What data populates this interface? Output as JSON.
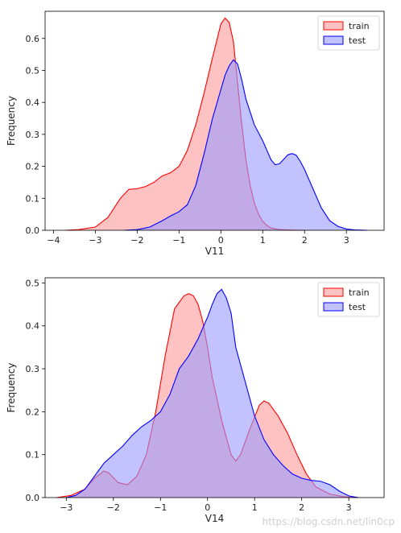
{
  "chart_data": [
    {
      "type": "area",
      "xlabel": "V11",
      "ylabel": "Frequency",
      "xlim": [
        -4.2,
        3.9
      ],
      "ylim": [
        0,
        0.685
      ],
      "xticks": [
        -4,
        -3,
        -2,
        -1,
        0,
        1,
        2,
        3
      ],
      "yticks": [
        0.0,
        0.1,
        0.2,
        0.3,
        0.4,
        0.5,
        0.6
      ],
      "legend_position": "top-right",
      "series": [
        {
          "name": "train",
          "color": "#ff0000",
          "fill": "#ff9999",
          "x": [
            -3.7,
            -3.4,
            -3.0,
            -2.7,
            -2.4,
            -2.2,
            -2.0,
            -1.8,
            -1.6,
            -1.4,
            -1.2,
            -1.0,
            -0.8,
            -0.6,
            -0.4,
            -0.2,
            0.0,
            0.1,
            0.2,
            0.3,
            0.4,
            0.5,
            0.6,
            0.7,
            0.8,
            0.9,
            1.0,
            1.1,
            1.2,
            1.4,
            1.7,
            2.0
          ],
          "y": [
            0.0,
            0.002,
            0.01,
            0.04,
            0.1,
            0.128,
            0.13,
            0.137,
            0.15,
            0.17,
            0.18,
            0.2,
            0.25,
            0.33,
            0.43,
            0.54,
            0.645,
            0.664,
            0.65,
            0.59,
            0.46,
            0.33,
            0.22,
            0.14,
            0.085,
            0.05,
            0.028,
            0.015,
            0.007,
            0.002,
            0.0005,
            0.0
          ]
        },
        {
          "name": "test",
          "color": "#0000ff",
          "fill": "#9999ff",
          "x": [
            -2.3,
            -2.0,
            -1.7,
            -1.4,
            -1.2,
            -1.0,
            -0.8,
            -0.6,
            -0.4,
            -0.2,
            0.0,
            0.1,
            0.2,
            0.3,
            0.4,
            0.5,
            0.6,
            0.8,
            1.0,
            1.2,
            1.3,
            1.4,
            1.5,
            1.6,
            1.7,
            1.8,
            1.9,
            2.0,
            2.2,
            2.4,
            2.6,
            2.8,
            3.0,
            3.2,
            3.5
          ],
          "y": [
            0.0,
            0.002,
            0.01,
            0.03,
            0.045,
            0.058,
            0.08,
            0.14,
            0.24,
            0.35,
            0.44,
            0.485,
            0.515,
            0.533,
            0.52,
            0.47,
            0.41,
            0.33,
            0.28,
            0.22,
            0.205,
            0.208,
            0.222,
            0.236,
            0.24,
            0.235,
            0.215,
            0.19,
            0.13,
            0.07,
            0.03,
            0.012,
            0.004,
            0.001,
            0.0
          ]
        }
      ]
    },
    {
      "type": "area",
      "xlabel": "V14",
      "ylabel": "Frequency",
      "xlim": [
        -3.45,
        3.75
      ],
      "ylim": [
        0,
        0.512
      ],
      "xticks": [
        -3,
        -2,
        -1,
        0,
        1,
        2,
        3
      ],
      "yticks": [
        0.0,
        0.1,
        0.2,
        0.3,
        0.4,
        0.5
      ],
      "legend_position": "top-right",
      "series": [
        {
          "name": "train",
          "color": "#ff0000",
          "fill": "#ff9999",
          "x": [
            -3.2,
            -2.9,
            -2.6,
            -2.4,
            -2.2,
            -2.1,
            -1.9,
            -1.7,
            -1.5,
            -1.3,
            -1.1,
            -0.9,
            -0.7,
            -0.5,
            -0.4,
            -0.3,
            -0.2,
            -0.1,
            0.0,
            0.1,
            0.3,
            0.5,
            0.6,
            0.7,
            0.9,
            1.1,
            1.2,
            1.3,
            1.5,
            1.7,
            1.9,
            2.1,
            2.3,
            2.6,
            2.9,
            3.2
          ],
          "y": [
            0.0,
            0.005,
            0.02,
            0.045,
            0.062,
            0.058,
            0.035,
            0.03,
            0.05,
            0.1,
            0.2,
            0.33,
            0.44,
            0.47,
            0.475,
            0.47,
            0.45,
            0.41,
            0.35,
            0.28,
            0.18,
            0.1,
            0.085,
            0.1,
            0.16,
            0.215,
            0.225,
            0.22,
            0.19,
            0.15,
            0.1,
            0.055,
            0.025,
            0.008,
            0.002,
            0.0
          ]
        },
        {
          "name": "test",
          "color": "#0000ff",
          "fill": "#9999ff",
          "x": [
            -3.0,
            -2.8,
            -2.6,
            -2.4,
            -2.2,
            -2.0,
            -1.8,
            -1.6,
            -1.4,
            -1.2,
            -1.0,
            -0.8,
            -0.6,
            -0.4,
            -0.2,
            0.0,
            0.1,
            0.2,
            0.3,
            0.4,
            0.5,
            0.6,
            0.8,
            1.0,
            1.2,
            1.4,
            1.6,
            1.8,
            2.0,
            2.2,
            2.4,
            2.6,
            2.8,
            3.0,
            3.2
          ],
          "y": [
            0.0,
            0.005,
            0.02,
            0.05,
            0.08,
            0.1,
            0.12,
            0.145,
            0.165,
            0.18,
            0.2,
            0.24,
            0.3,
            0.33,
            0.37,
            0.42,
            0.45,
            0.475,
            0.485,
            0.465,
            0.43,
            0.35,
            0.27,
            0.19,
            0.135,
            0.1,
            0.075,
            0.055,
            0.045,
            0.04,
            0.038,
            0.03,
            0.015,
            0.004,
            0.0
          ]
        }
      ]
    }
  ],
  "watermark": "https://blog.csdn.net/lin0cp"
}
